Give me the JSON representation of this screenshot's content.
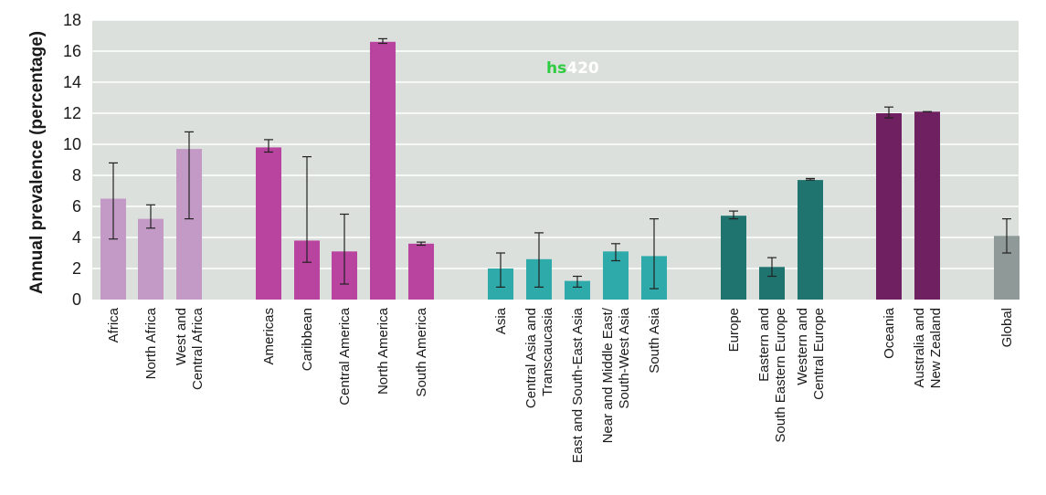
{
  "chart_data": {
    "type": "bar",
    "title": "",
    "xlabel": "",
    "ylabel": "Annual prevalence (percentage)",
    "ylim": [
      0,
      18
    ],
    "yticks": [
      "0",
      "2",
      "4",
      "6",
      "8",
      "10",
      "12",
      "14",
      "16",
      "18"
    ],
    "grid": true,
    "watermark": {
      "part1": "hs",
      "part2": "420",
      "color1": "#2ecc40",
      "color2": "#ffffff"
    },
    "colors": {
      "plot_background": "#dce0dc",
      "africa": "#c39ac6",
      "americas": "#b9449f",
      "asia": "#2eaaaa",
      "europe": "#1f7470",
      "oceania": "#6e2060",
      "global": "#8f9a98"
    },
    "groups": [
      {
        "name": "Africa",
        "color_key": "africa",
        "bars": [
          {
            "label": [
              "Africa"
            ],
            "value": 6.5,
            "low": 3.9,
            "high": 8.8
          },
          {
            "label": [
              "North Africa"
            ],
            "value": 5.2,
            "low": 4.6,
            "high": 6.1
          },
          {
            "label": [
              "West and",
              "Central Africa"
            ],
            "value": 9.7,
            "low": 5.2,
            "high": 10.8
          }
        ]
      },
      {
        "name": "Americas",
        "color_key": "americas",
        "bars": [
          {
            "label": [
              "Americas"
            ],
            "value": 9.8,
            "low": 9.5,
            "high": 10.3
          },
          {
            "label": [
              "Caribbean"
            ],
            "value": 3.8,
            "low": 2.4,
            "high": 9.2
          },
          {
            "label": [
              "Central America"
            ],
            "value": 3.1,
            "low": 1.0,
            "high": 5.5
          },
          {
            "label": [
              "North America"
            ],
            "value": 16.6,
            "low": 16.5,
            "high": 16.8
          },
          {
            "label": [
              "South America"
            ],
            "value": 3.6,
            "low": 3.5,
            "high": 3.7
          }
        ]
      },
      {
        "name": "Asia",
        "color_key": "asia",
        "bars": [
          {
            "label": [
              "Asia"
            ],
            "value": 2.0,
            "low": 0.8,
            "high": 3.0
          },
          {
            "label": [
              "Central Asia and",
              "Transcaucasia"
            ],
            "value": 2.6,
            "low": 0.8,
            "high": 4.3
          },
          {
            "label": [
              "East and South-East Asia"
            ],
            "value": 1.2,
            "low": 0.8,
            "high": 1.5
          },
          {
            "label": [
              "Near and Middle East/",
              "South-West Asia"
            ],
            "value": 3.1,
            "low": 2.5,
            "high": 3.6
          },
          {
            "label": [
              "South Asia"
            ],
            "value": 2.8,
            "low": 0.7,
            "high": 5.2
          }
        ]
      },
      {
        "name": "Europe",
        "color_key": "europe",
        "bars": [
          {
            "label": [
              "Europe"
            ],
            "value": 5.4,
            "low": 5.2,
            "high": 5.7
          },
          {
            "label": [
              "Eastern and",
              "South Eastern Europe"
            ],
            "value": 2.1,
            "low": 1.5,
            "high": 2.7
          },
          {
            "label": [
              "Western and",
              "Central Europe"
            ],
            "value": 7.7,
            "low": 7.7,
            "high": 7.8
          }
        ]
      },
      {
        "name": "Oceania",
        "color_key": "oceania",
        "bars": [
          {
            "label": [
              "Oceania"
            ],
            "value": 12.0,
            "low": 11.7,
            "high": 12.4
          },
          {
            "label": [
              "Australia and",
              "New Zealand"
            ],
            "value": 12.1,
            "low": 12.1,
            "high": 12.1
          }
        ]
      },
      {
        "name": "Global",
        "color_key": "global",
        "bars": [
          {
            "label": [
              "Global"
            ],
            "value": 4.1,
            "low": 3.0,
            "high": 5.2
          }
        ]
      }
    ]
  }
}
